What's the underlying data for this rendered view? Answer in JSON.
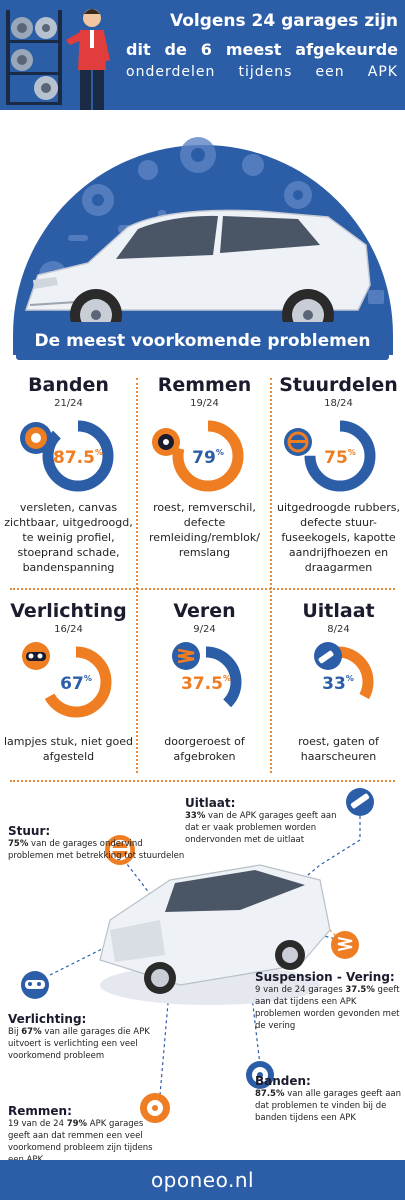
{
  "header": {
    "title_line1": "Volgens 24 garages zijn",
    "title_line2": "dit de 6 meest afgekeurde",
    "subtitle": "onderdelen tijdens een APK"
  },
  "banner": "De meest voorkomende problemen",
  "stats": [
    {
      "name": "Banden",
      "count": "21/24",
      "percent": "87.5",
      "value": 87.5,
      "color": "#2c5ea8",
      "description": "versleten, canvas zichtbaar, uitgedroogd, te weinig profiel, stoeprand schade, bandenspanning",
      "icon": "tire-icon"
    },
    {
      "name": "Remmen",
      "count": "19/24",
      "percent": "79",
      "value": 79,
      "color": "#ef7d22",
      "description": "roest, remverschil, defecte remleiding/remblok/ remslang",
      "icon": "brake-disc-icon"
    },
    {
      "name": "Stuurdelen",
      "count": "18/24",
      "percent": "75",
      "value": 75,
      "color": "#2c5ea8",
      "description": "uitgedroogde rubbers, defecte stuur-fuseekogels, kapotte aandrijfhoezen en draagarmen",
      "icon": "steering-wheel-icon"
    },
    {
      "name": "Verlichting",
      "count": "16/24",
      "percent": "67",
      "value": 67,
      "color": "#ef7d22",
      "description": "lampjes stuk, niet goed afgesteld",
      "icon": "headlight-icon"
    },
    {
      "name": "Veren",
      "count": "9/24",
      "percent": "37.5",
      "value": 37.5,
      "color": "#2c5ea8",
      "description": "doorgeroest of afgebroken",
      "icon": "spring-icon"
    },
    {
      "name": "Uitlaat",
      "count": "8/24",
      "percent": "33",
      "value": 33,
      "color": "#ef7d22",
      "description": "roest, gaten of haarscheuren",
      "icon": "exhaust-icon"
    }
  ],
  "pct_sign": "%",
  "details": {
    "uitlaat": {
      "title": "Uitlaat:",
      "strong": "33%",
      "text": " van de APK garages geeft aan dat er vaak problemen worden ondervonden met de uitlaat"
    },
    "stuur": {
      "title": "Stuur:",
      "strong": "75%",
      "text": " van de garages ondervind problemen met betrekking tot stuurdelen"
    },
    "vering": {
      "title": "Suspension - Vering:",
      "pre": "9 van de 24 garages ",
      "strong": "37.5%",
      "text": " geeft aan dat tijdens een APK problemen worden gevonden met de vering"
    },
    "verlichting": {
      "title": "Verlichting:",
      "pre": "Bij ",
      "strong": "67%",
      "text": " van alle garages die APK uitvoert is verlichting een veel voorkomend probleem"
    },
    "banden": {
      "title": "Banden:",
      "strong": "87.5%",
      "text": " van alle garages geeft aan dat problemen te vinden bij de banden tijdens een APK"
    },
    "remmen": {
      "title": "Remmen:",
      "pre": "19 van de 24 ",
      "strong": "79%",
      "text": " APK garages geeft aan dat remmen een veel voorkomend probleem zijn tijdens een APK"
    }
  },
  "footer": "oponeo.nl",
  "colors": {
    "blue": "#2c5ea8",
    "orange": "#ef7d22",
    "dark": "#1b1b2e"
  }
}
